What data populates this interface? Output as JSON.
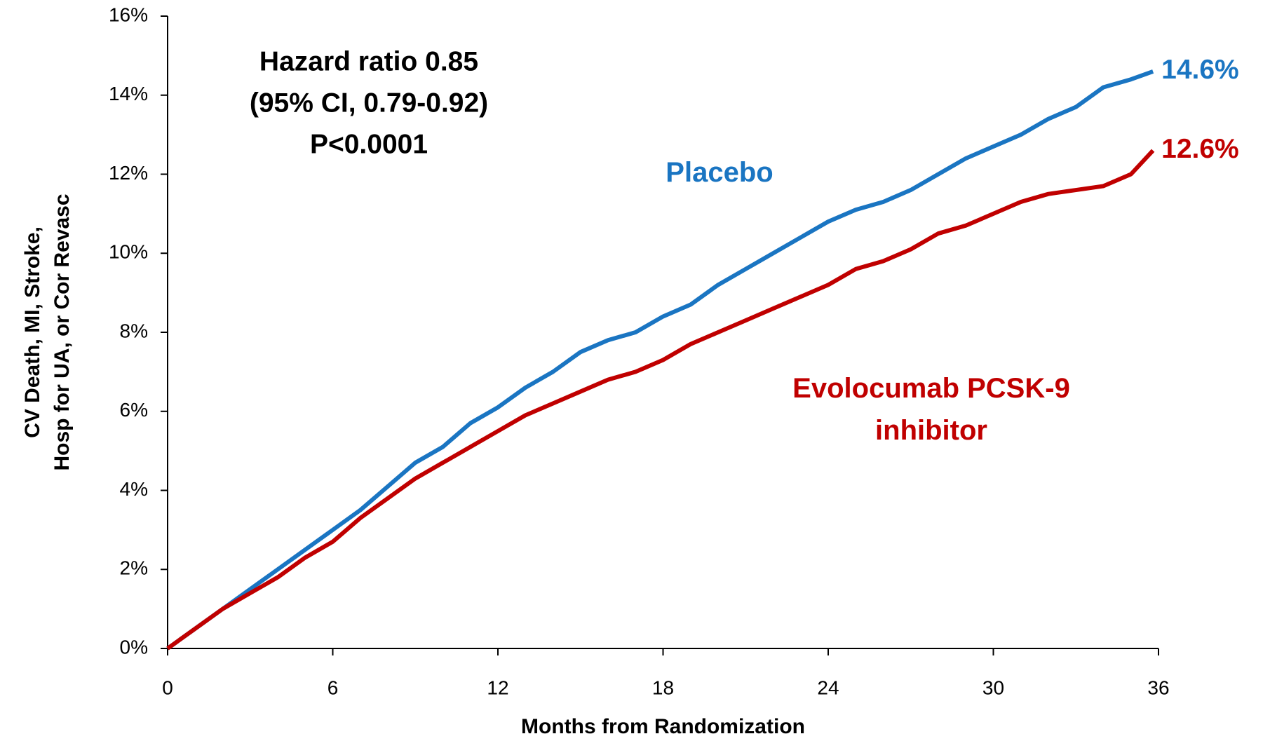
{
  "chart_data": {
    "type": "line",
    "annotation": [
      "Hazard ratio 0.85",
      "(95% CI, 0.79-0.92)",
      "P<0.0001"
    ],
    "x_label": "Months from Randomization",
    "y_label": [
      "CV Death, MI, Stroke,",
      "Hosp for UA, or Cor Revasc"
    ],
    "x": [
      0,
      1,
      2,
      3,
      4,
      5,
      6,
      7,
      8,
      9,
      10,
      11,
      12,
      13,
      14,
      15,
      16,
      17,
      18,
      19,
      20,
      21,
      22,
      23,
      24,
      25,
      26,
      27,
      28,
      29,
      30,
      31,
      32,
      33,
      34,
      35,
      35.8
    ],
    "series": [
      {
        "name": "Placebo",
        "color": "#1a75c2",
        "end_label": "14.6%",
        "values": [
          0,
          0.5,
          1.0,
          1.5,
          2.0,
          2.5,
          3.0,
          3.5,
          4.1,
          4.7,
          5.1,
          5.7,
          6.1,
          6.6,
          7.0,
          7.5,
          7.8,
          8.0,
          8.4,
          8.7,
          9.2,
          9.6,
          10.0,
          10.4,
          10.8,
          11.1,
          11.3,
          11.6,
          12.0,
          12.4,
          12.7,
          13.0,
          13.4,
          13.7,
          14.2,
          14.4,
          14.6
        ]
      },
      {
        "name": "Evolocumab PCSK-9 inhibitor",
        "color": "#c00000",
        "end_label": "12.6%",
        "values": [
          0,
          0.5,
          1.0,
          1.4,
          1.8,
          2.3,
          2.7,
          3.3,
          3.8,
          4.3,
          4.7,
          5.1,
          5.5,
          5.9,
          6.2,
          6.5,
          6.8,
          7.0,
          7.3,
          7.7,
          8.0,
          8.3,
          8.6,
          8.9,
          9.2,
          9.6,
          9.8,
          10.1,
          10.5,
          10.7,
          11.0,
          11.3,
          11.5,
          11.6,
          11.7,
          12.0,
          12.6
        ]
      }
    ],
    "xlim": [
      0,
      36
    ],
    "xticks": [
      0,
      6,
      12,
      18,
      24,
      30,
      36
    ],
    "ylim": [
      0,
      16
    ],
    "yticks": [
      {
        "value": 0,
        "label": "0%"
      },
      {
        "value": 2,
        "label": "2%"
      },
      {
        "value": 4,
        "label": "4%"
      },
      {
        "value": 6,
        "label": "6%"
      },
      {
        "value": 8,
        "label": "8%"
      },
      {
        "value": 10,
        "label": "10%"
      },
      {
        "value": 12,
        "label": "12%"
      },
      {
        "value": 14,
        "label": "14%"
      },
      {
        "value": 16,
        "label": "16%"
      }
    ]
  }
}
